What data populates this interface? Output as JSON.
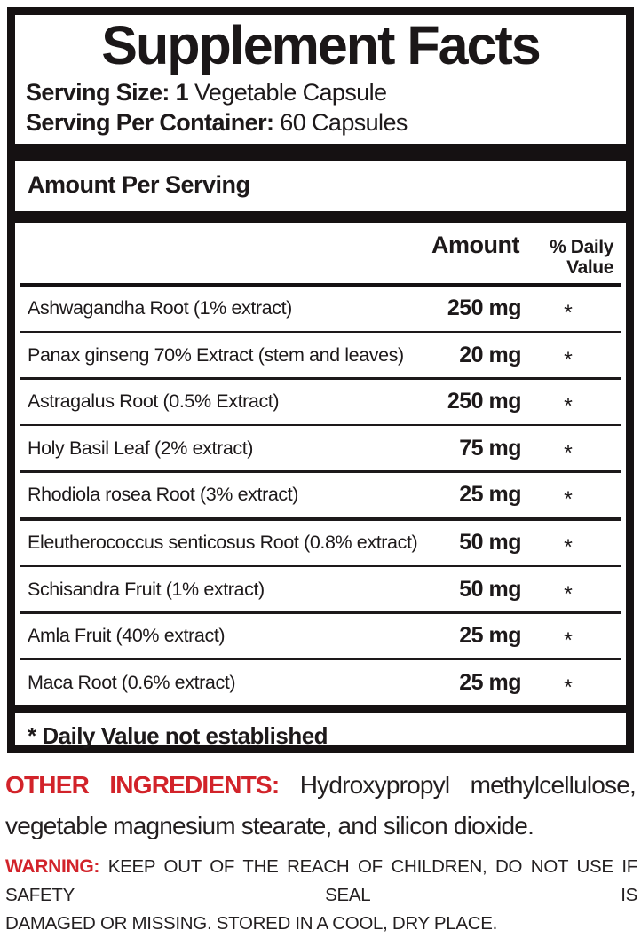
{
  "colors": {
    "text_black": "#1d191a",
    "bar_black": "#151112",
    "accent_red": "#d2232a",
    "background": "#ffffff"
  },
  "panel": {
    "title": "Supplement Facts",
    "serving_size_label": "Serving Size: 1",
    "serving_size_value": "Vegetable Capsule",
    "servings_per_container_label": "Serving Per Container:",
    "servings_per_container_value": "60 Capsules",
    "section_header": "Amount Per Serving",
    "columns": {
      "amount": "Amount",
      "daily_value_line1": "% Daily",
      "daily_value_line2": "Value"
    },
    "rows": [
      {
        "name": "Ashwagandha Root (1% extract)",
        "amount": "250 mg",
        "daily_value": "*"
      },
      {
        "name": "Panax ginseng 70% Extract (stem and leaves)",
        "amount": "20 mg",
        "daily_value": "*"
      },
      {
        "name": "Astragalus Root (0.5% Extract)",
        "amount": "250 mg",
        "daily_value": "*"
      },
      {
        "name": "Holy Basil Leaf (2% extract)",
        "amount": "75 mg",
        "daily_value": "*"
      },
      {
        "name": "Rhodiola rosea Root (3% extract)",
        "amount": "25 mg",
        "daily_value": "*"
      },
      {
        "name": "Eleutherococcus senticosus Root (0.8% extract)",
        "amount": "50 mg",
        "daily_value": "*"
      },
      {
        "name": "Schisandra Fruit (1% extract)",
        "amount": "50 mg",
        "daily_value": "*"
      },
      {
        "name": "Amla Fruit (40% extract)",
        "amount": "25 mg",
        "daily_value": "*"
      },
      {
        "name": "Maca Root (0.6% extract)",
        "amount": "25 mg",
        "daily_value": "*"
      }
    ],
    "footnote": "* Daily Value not established"
  },
  "other_ingredients": {
    "label": "OTHER INGREDIENTS:",
    "line1": "Hydroxypropyl methylcellulose,",
    "line2": "vegetable magnesium stearate, and silicon dioxide."
  },
  "warning": {
    "label": "WARNING:",
    "line1": "KEEP OUT OF THE REACH OF CHILDREN, DO NOT USE IF SAFETY SEAL IS",
    "line2": "DAMAGED OR MISSING. STORED IN A COOL, DRY PLACE."
  }
}
